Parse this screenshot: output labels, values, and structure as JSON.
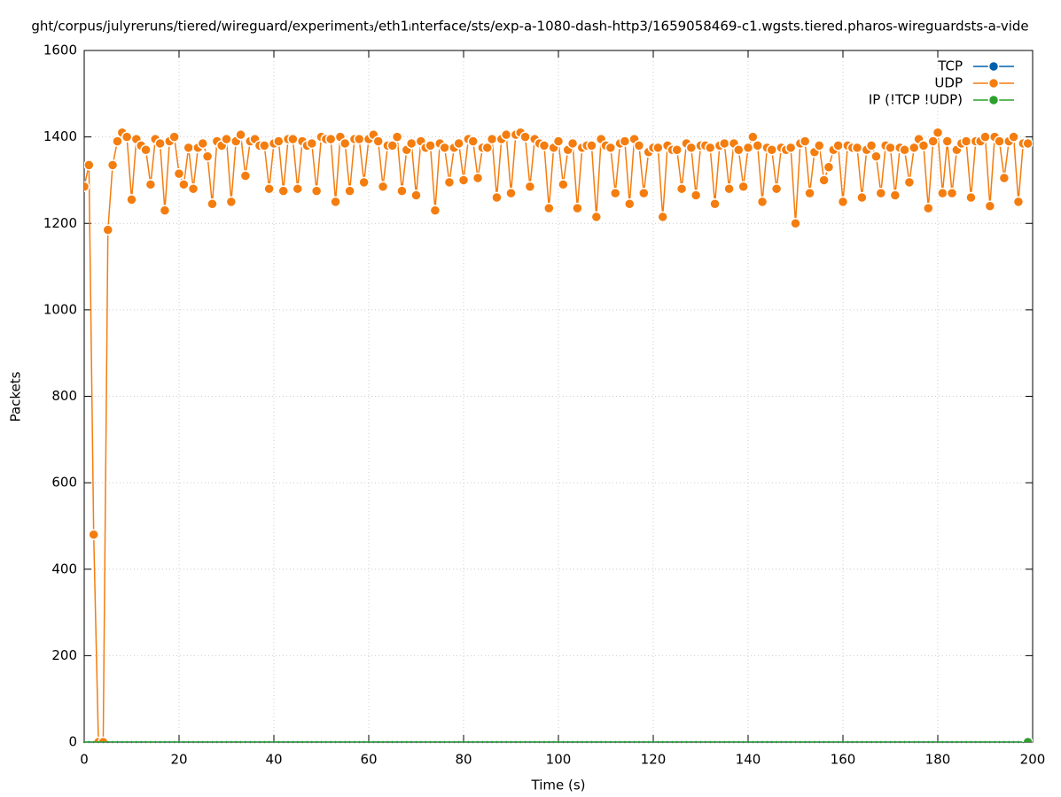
{
  "chart_data": {
    "type": "line",
    "title": "ght/corpus/julyreruns/tiered/wireguard/experiment₃/eth1ᵢnterface/sts/exp-a-1080-dash-http3/1659058469-c1.wgsts.tiered.pharos-wireguardsts-a-vide",
    "x_label": "Time (s)",
    "y_label": "Packets",
    "xlim": [
      0,
      200
    ],
    "xticks": [
      0,
      20,
      40,
      60,
      80,
      100,
      120,
      140,
      160,
      180,
      200
    ],
    "ylim": [
      0,
      1600
    ],
    "yticks": [
      0,
      200,
      400,
      600,
      800,
      1000,
      1200,
      1400,
      1600
    ],
    "grid": true,
    "legend": "top-right",
    "x": [
      0,
      1,
      2,
      3,
      4,
      5,
      6,
      7,
      8,
      9,
      10,
      11,
      12,
      13,
      14,
      15,
      16,
      17,
      18,
      19,
      20,
      21,
      22,
      23,
      24,
      25,
      26,
      27,
      28,
      29,
      30,
      31,
      32,
      33,
      34,
      35,
      36,
      37,
      38,
      39,
      40,
      41,
      42,
      43,
      44,
      45,
      46,
      47,
      48,
      49,
      50,
      51,
      52,
      53,
      54,
      55,
      56,
      57,
      58,
      59,
      60,
      61,
      62,
      63,
      64,
      65,
      66,
      67,
      68,
      69,
      70,
      71,
      72,
      73,
      74,
      75,
      76,
      77,
      78,
      79,
      80,
      81,
      82,
      83,
      84,
      85,
      86,
      87,
      88,
      89,
      90,
      91,
      92,
      93,
      94,
      95,
      96,
      97,
      98,
      99,
      100,
      101,
      102,
      103,
      104,
      105,
      106,
      107,
      108,
      109,
      110,
      111,
      112,
      113,
      114,
      115,
      116,
      117,
      118,
      119,
      120,
      121,
      122,
      123,
      124,
      125,
      126,
      127,
      128,
      129,
      130,
      131,
      132,
      133,
      134,
      135,
      136,
      137,
      138,
      139,
      140,
      141,
      142,
      143,
      144,
      145,
      146,
      147,
      148,
      149,
      150,
      151,
      152,
      153,
      154,
      155,
      156,
      157,
      158,
      159,
      160,
      161,
      162,
      163,
      164,
      165,
      166,
      167,
      168,
      169,
      170,
      171,
      172,
      173,
      174,
      175,
      176,
      177,
      178,
      179,
      180,
      181,
      182,
      183,
      184,
      185,
      186,
      187,
      188,
      189,
      190,
      191,
      192,
      193,
      194,
      195,
      196,
      197,
      198,
      199
    ],
    "series": [
      {
        "name": "TCP",
        "color": "#0060ad",
        "values": [
          0,
          0,
          0,
          0,
          0,
          0,
          0,
          0,
          0,
          0,
          0,
          0,
          0,
          0,
          0,
          0,
          0,
          0,
          0,
          0,
          0,
          0,
          0,
          0,
          0,
          0,
          0,
          0,
          0,
          0,
          0,
          0,
          0,
          0,
          0,
          0,
          0,
          0,
          0,
          0,
          0,
          0,
          0,
          0,
          0,
          0,
          0,
          0,
          0,
          0,
          0,
          0,
          0,
          0,
          0,
          0,
          0,
          0,
          0,
          0,
          0,
          0,
          0,
          0,
          0,
          0,
          0,
          0,
          0,
          0,
          0,
          0,
          0,
          0,
          0,
          0,
          0,
          0,
          0,
          0,
          0,
          0,
          0,
          0,
          0,
          0,
          0,
          0,
          0,
          0,
          0,
          0,
          0,
          0,
          0,
          0,
          0,
          0,
          0,
          0,
          0,
          0,
          0,
          0,
          0,
          0,
          0,
          0,
          0,
          0,
          0,
          0,
          0,
          0,
          0,
          0,
          0,
          0,
          0,
          0,
          0,
          0,
          0,
          0,
          0,
          0,
          0,
          0,
          0,
          0,
          0,
          0,
          0,
          0,
          0,
          0,
          0,
          0,
          0,
          0,
          0,
          0,
          0,
          0,
          0,
          0,
          0,
          0,
          0,
          0,
          0,
          0,
          0,
          0,
          0,
          0,
          0,
          0,
          0,
          0,
          0,
          0,
          0,
          0,
          0,
          0,
          0,
          0,
          0,
          0,
          0,
          0,
          0,
          0,
          0,
          0,
          0,
          0,
          0,
          0,
          0,
          0,
          0,
          0,
          0,
          0,
          0,
          0,
          0,
          0,
          0,
          0,
          0,
          0,
          0,
          0,
          0,
          0,
          0,
          0
        ]
      },
      {
        "name": "UDP",
        "color": "#f47d0f",
        "values": [
          1285,
          1335,
          480,
          0,
          0,
          1185,
          1335,
          1390,
          1410,
          1400,
          1255,
          1395,
          1380,
          1370,
          1290,
          1395,
          1385,
          1230,
          1390,
          1400,
          1315,
          1290,
          1375,
          1280,
          1375,
          1385,
          1355,
          1245,
          1390,
          1380,
          1395,
          1250,
          1390,
          1405,
          1310,
          1390,
          1395,
          1380,
          1380,
          1280,
          1385,
          1390,
          1275,
          1395,
          1395,
          1280,
          1390,
          1380,
          1385,
          1275,
          1400,
          1395,
          1395,
          1250,
          1400,
          1385,
          1275,
          1395,
          1395,
          1295,
          1395,
          1405,
          1390,
          1285,
          1380,
          1380,
          1400,
          1275,
          1370,
          1385,
          1265,
          1390,
          1375,
          1380,
          1230,
          1385,
          1375,
          1295,
          1375,
          1385,
          1300,
          1395,
          1390,
          1305,
          1375,
          1375,
          1395,
          1260,
          1395,
          1405,
          1270,
          1405,
          1410,
          1400,
          1285,
          1395,
          1385,
          1380,
          1235,
          1375,
          1390,
          1290,
          1370,
          1385,
          1235,
          1375,
          1380,
          1380,
          1215,
          1395,
          1380,
          1375,
          1270,
          1385,
          1390,
          1245,
          1395,
          1380,
          1270,
          1365,
          1375,
          1375,
          1215,
          1380,
          1370,
          1370,
          1280,
          1385,
          1375,
          1265,
          1380,
          1380,
          1375,
          1245,
          1380,
          1385,
          1280,
          1385,
          1370,
          1285,
          1375,
          1400,
          1380,
          1250,
          1375,
          1370,
          1280,
          1375,
          1370,
          1375,
          1200,
          1385,
          1390,
          1270,
          1365,
          1380,
          1300,
          1330,
          1370,
          1380,
          1250,
          1380,
          1375,
          1375,
          1260,
          1370,
          1380,
          1355,
          1270,
          1380,
          1375,
          1265,
          1375,
          1370,
          1295,
          1375,
          1395,
          1380,
          1235,
          1390,
          1410,
          1270,
          1390,
          1270,
          1370,
          1385,
          1390,
          1260,
          1390,
          1390,
          1400,
          1240,
          1400,
          1390,
          1305,
          1390,
          1400,
          1250,
          1385,
          1385
        ]
      },
      {
        "name": "IP (!TCP  !UDP)",
        "color": "#2ca02c",
        "values": [
          0,
          0,
          0,
          0,
          0,
          0,
          0,
          0,
          0,
          0,
          0,
          0,
          0,
          0,
          0,
          0,
          0,
          0,
          0,
          0,
          0,
          0,
          0,
          0,
          0,
          0,
          0,
          0,
          0,
          0,
          0,
          0,
          0,
          0,
          0,
          0,
          0,
          0,
          0,
          0,
          0,
          0,
          0,
          0,
          0,
          0,
          0,
          0,
          0,
          0,
          0,
          0,
          0,
          0,
          0,
          0,
          0,
          0,
          0,
          0,
          0,
          0,
          0,
          0,
          0,
          0,
          0,
          0,
          0,
          0,
          0,
          0,
          0,
          0,
          0,
          0,
          0,
          0,
          0,
          0,
          0,
          0,
          0,
          0,
          0,
          0,
          0,
          0,
          0,
          0,
          0,
          0,
          0,
          0,
          0,
          0,
          0,
          0,
          0,
          0,
          0,
          0,
          0,
          0,
          0,
          0,
          0,
          0,
          0,
          0,
          0,
          0,
          0,
          0,
          0,
          0,
          0,
          0,
          0,
          0,
          0,
          0,
          0,
          0,
          0,
          0,
          0,
          0,
          0,
          0,
          0,
          0,
          0,
          0,
          0,
          0,
          0,
          0,
          0,
          0,
          0,
          0,
          0,
          0,
          0,
          0,
          0,
          0,
          0,
          0,
          0,
          0,
          0,
          0,
          0,
          0,
          0,
          0,
          0,
          0,
          0,
          0,
          0,
          0,
          0,
          0,
          0,
          0,
          0,
          0,
          0,
          0,
          0,
          0,
          0,
          0,
          0,
          0,
          0,
          0,
          0,
          0,
          0,
          0,
          0,
          0,
          0,
          0,
          0,
          0,
          0,
          0,
          0,
          0,
          0,
          0,
          0,
          0,
          0,
          0
        ]
      }
    ]
  }
}
